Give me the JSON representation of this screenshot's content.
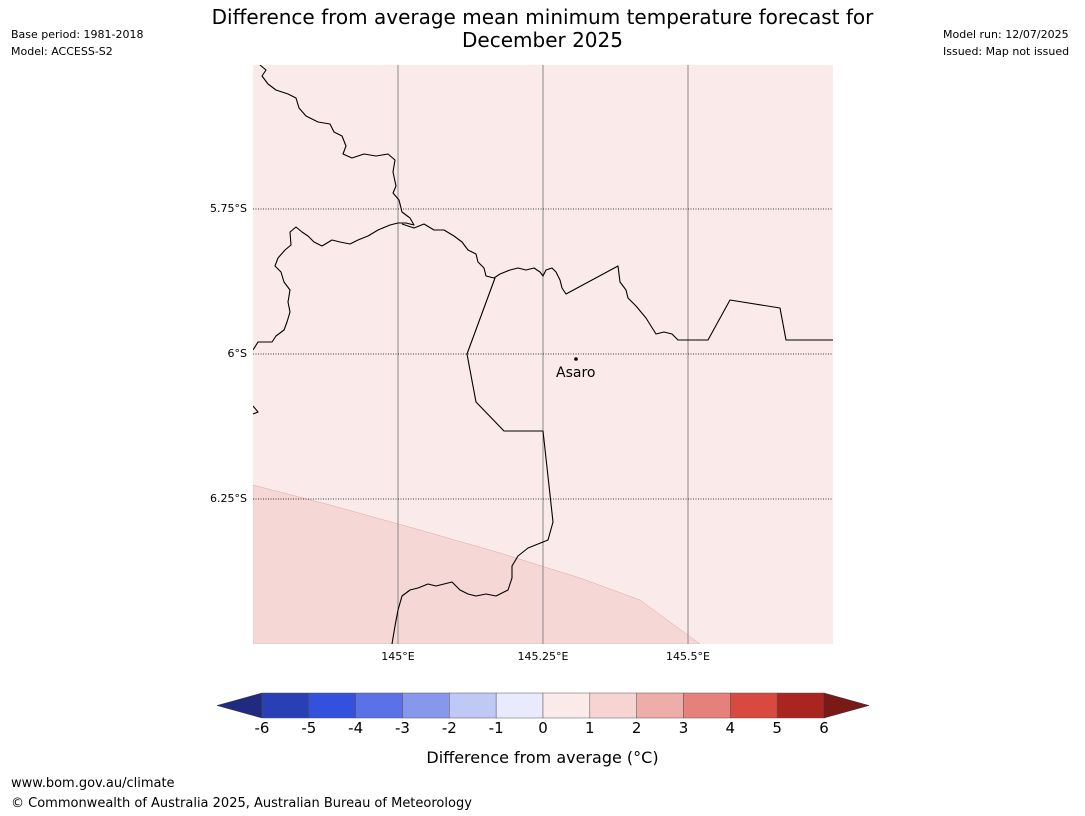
{
  "title_line1": "Difference from average mean minimum temperature forecast for",
  "title_line2": "December 2025",
  "meta_left": [
    "Base period: 1981-2018",
    "Model: ACCESS-S2"
  ],
  "meta_right": [
    "Model run: 12/07/2025",
    "Issued: Map not issued"
  ],
  "map": {
    "lat_labels": [
      "5.75°S",
      "6°S",
      "6.25°S"
    ],
    "lon_labels": [
      "145°E",
      "145.25°E",
      "145.5°E"
    ],
    "place_label": "Asaro",
    "background_color": "#fbeaea",
    "warm_zone_color": "#f5d7d5"
  },
  "colorbar": {
    "ticks": [
      "-6",
      "-5",
      "-4",
      "-3",
      "-2",
      "-1",
      "0",
      "1",
      "2",
      "3",
      "4",
      "5",
      "6"
    ],
    "colors": [
      "#1f2a80",
      "#283fb5",
      "#3351dc",
      "#5b72e6",
      "#8797ec",
      "#c0c8f5",
      "#e9ebfc",
      "#fbeaea",
      "#f6d4d2",
      "#eeada9",
      "#e5807a",
      "#d8493f",
      "#aa2520",
      "#7a1a17"
    ],
    "title": "Difference from average (°C)"
  },
  "footer": {
    "url": "www.bom.gov.au/climate",
    "copyright": "© Commonwealth of Australia 2025, Australian Bureau of Meteorology"
  }
}
